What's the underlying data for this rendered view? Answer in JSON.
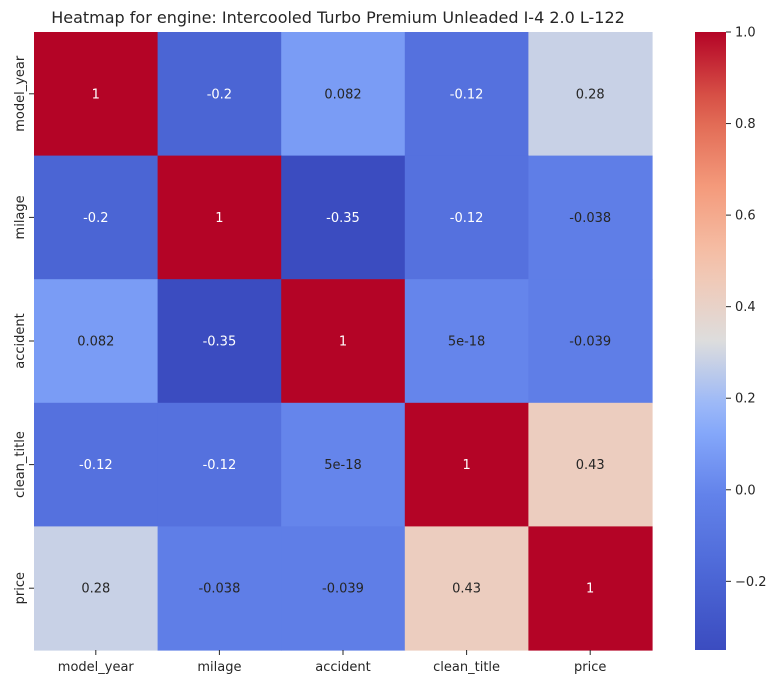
{
  "chart_data": {
    "type": "heatmap",
    "title": "Heatmap for engine: Intercooled Turbo Premium Unleaded I-4 2.0 L-122",
    "xlabel": "",
    "ylabel": "",
    "columns": [
      "model_year",
      "milage",
      "accident",
      "clean_title",
      "price"
    ],
    "rows": [
      "model_year",
      "milage",
      "accident",
      "clean_title",
      "price"
    ],
    "values": [
      [
        1,
        -0.2,
        0.082,
        -0.12,
        0.28
      ],
      [
        -0.2,
        1,
        -0.35,
        -0.12,
        -0.038
      ],
      [
        0.082,
        -0.35,
        1,
        5e-18,
        -0.039
      ],
      [
        -0.12,
        -0.12,
        5e-18,
        1,
        0.43
      ],
      [
        0.28,
        -0.038,
        -0.039,
        0.43,
        1
      ]
    ],
    "annotations": [
      [
        "1",
        "-0.2",
        "0.082",
        "-0.12",
        "0.28"
      ],
      [
        "-0.2",
        "1",
        "-0.35",
        "-0.12",
        "-0.038"
      ],
      [
        "0.082",
        "-0.35",
        "1",
        "5e-18",
        "-0.039"
      ],
      [
        "-0.12",
        "-0.12",
        "5e-18",
        "1",
        "0.43"
      ],
      [
        "0.28",
        "-0.038",
        "-0.039",
        "0.43",
        "1"
      ]
    ],
    "colormap": "coolwarm",
    "vmin": -0.35,
    "vmax": 1,
    "colorbar_ticks": [
      1.0,
      0.8,
      0.6,
      0.4,
      0.2,
      0.0,
      -0.2
    ],
    "colorbar_tick_labels": [
      "1.0",
      "0.8",
      "0.6",
      "0.4",
      "0.2",
      "0.0",
      "−0.2"
    ],
    "colorbar_placement": "right",
    "grid": false
  }
}
